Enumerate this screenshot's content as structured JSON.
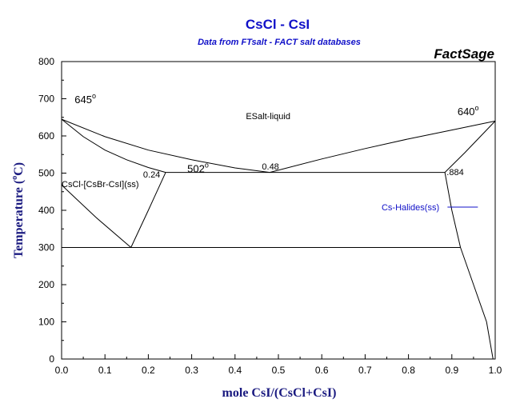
{
  "chart_data": {
    "type": "line",
    "title": "CsCl - CsI",
    "subtitle": "Data from FTsalt - FACT salt databases",
    "brand": "FactSage",
    "xlabel": "mole CsI/(CsCl+CsI)",
    "ylabel_main": "Temperature (",
    "ylabel_degree": "o",
    "ylabel_unit": "C)",
    "xlim": [
      0,
      1
    ],
    "ylim": [
      0,
      800
    ],
    "x_ticks": [
      0.0,
      0.1,
      0.2,
      0.3,
      0.4,
      0.5,
      0.6,
      0.7,
      0.8,
      0.9,
      1.0
    ],
    "x_tick_labels": [
      "0.0",
      "0.1",
      "0.2",
      "0.3",
      "0.4",
      "0.5",
      "0.6",
      "0.7",
      "0.8",
      "0.9",
      "1.0"
    ],
    "y_ticks": [
      0,
      100,
      200,
      300,
      400,
      500,
      600,
      700,
      800
    ],
    "y_tick_labels": [
      "0",
      "100",
      "200",
      "300",
      "400",
      "500",
      "600",
      "700",
      "800"
    ],
    "grid": false,
    "series": [
      {
        "points": [
          [
            0,
            645
          ],
          [
            0.1,
            598
          ],
          [
            0.2,
            562
          ],
          [
            0.3,
            536
          ],
          [
            0.4,
            514
          ],
          [
            0.48,
            502
          ]
        ]
      },
      {
        "points": [
          [
            0.48,
            502
          ],
          [
            0.6,
            538
          ],
          [
            0.7,
            566
          ],
          [
            0.8,
            592
          ],
          [
            0.9,
            616
          ],
          [
            1.0,
            640
          ]
        ]
      },
      {
        "points": [
          [
            0,
            645
          ],
          [
            0.05,
            598
          ],
          [
            0.1,
            562
          ],
          [
            0.15,
            536
          ],
          [
            0.2,
            515
          ],
          [
            0.24,
            502
          ]
        ]
      },
      {
        "points": [
          [
            0.884,
            502
          ],
          [
            0.93,
            555
          ],
          [
            1.0,
            640
          ]
        ]
      },
      {
        "points": [
          [
            0,
            468
          ],
          [
            0.08,
            380
          ],
          [
            0.16,
            300
          ]
        ]
      },
      {
        "points": [
          [
            0.16,
            300
          ],
          [
            0.2,
            400
          ],
          [
            0.24,
            502
          ]
        ]
      },
      {
        "points": [
          [
            0.884,
            502
          ],
          [
            0.9,
            400
          ],
          [
            0.92,
            300
          ]
        ]
      },
      {
        "points": [
          [
            0.92,
            300
          ],
          [
            0.95,
            200
          ],
          [
            0.98,
            100
          ],
          [
            0.995,
            0
          ]
        ]
      },
      {
        "points": [
          [
            0.24,
            502
          ],
          [
            0.884,
            502
          ]
        ]
      },
      {
        "points": [
          [
            0,
            300
          ],
          [
            0.92,
            300
          ]
        ]
      }
    ],
    "annotations": [
      {
        "text": "645",
        "degree": "o",
        "x": 0.03,
        "y": 688,
        "size": "big"
      },
      {
        "text": "640",
        "degree": "o",
        "x": 0.913,
        "y": 656,
        "size": "big"
      },
      {
        "text": "ESalt-liquid",
        "x": 0.425,
        "y": 645
      },
      {
        "text": "502",
        "degree": "o",
        "x": 0.29,
        "y": 502,
        "size": "big"
      },
      {
        "text": "0.48",
        "x": 0.462,
        "y": 510
      },
      {
        "text": "0.24",
        "x": 0.188,
        "y": 488
      },
      {
        "text": ".884",
        "x": 0.888,
        "y": 495
      },
      {
        "text": "CsCl-[CsBr-CsI](ss)",
        "x": 0.0,
        "y": 462
      },
      {
        "text": "Cs-Halides(ss)",
        "x": 0.738,
        "y": 400,
        "color": "blue",
        "leader": [
          0.89,
          0.96
        ]
      }
    ]
  }
}
